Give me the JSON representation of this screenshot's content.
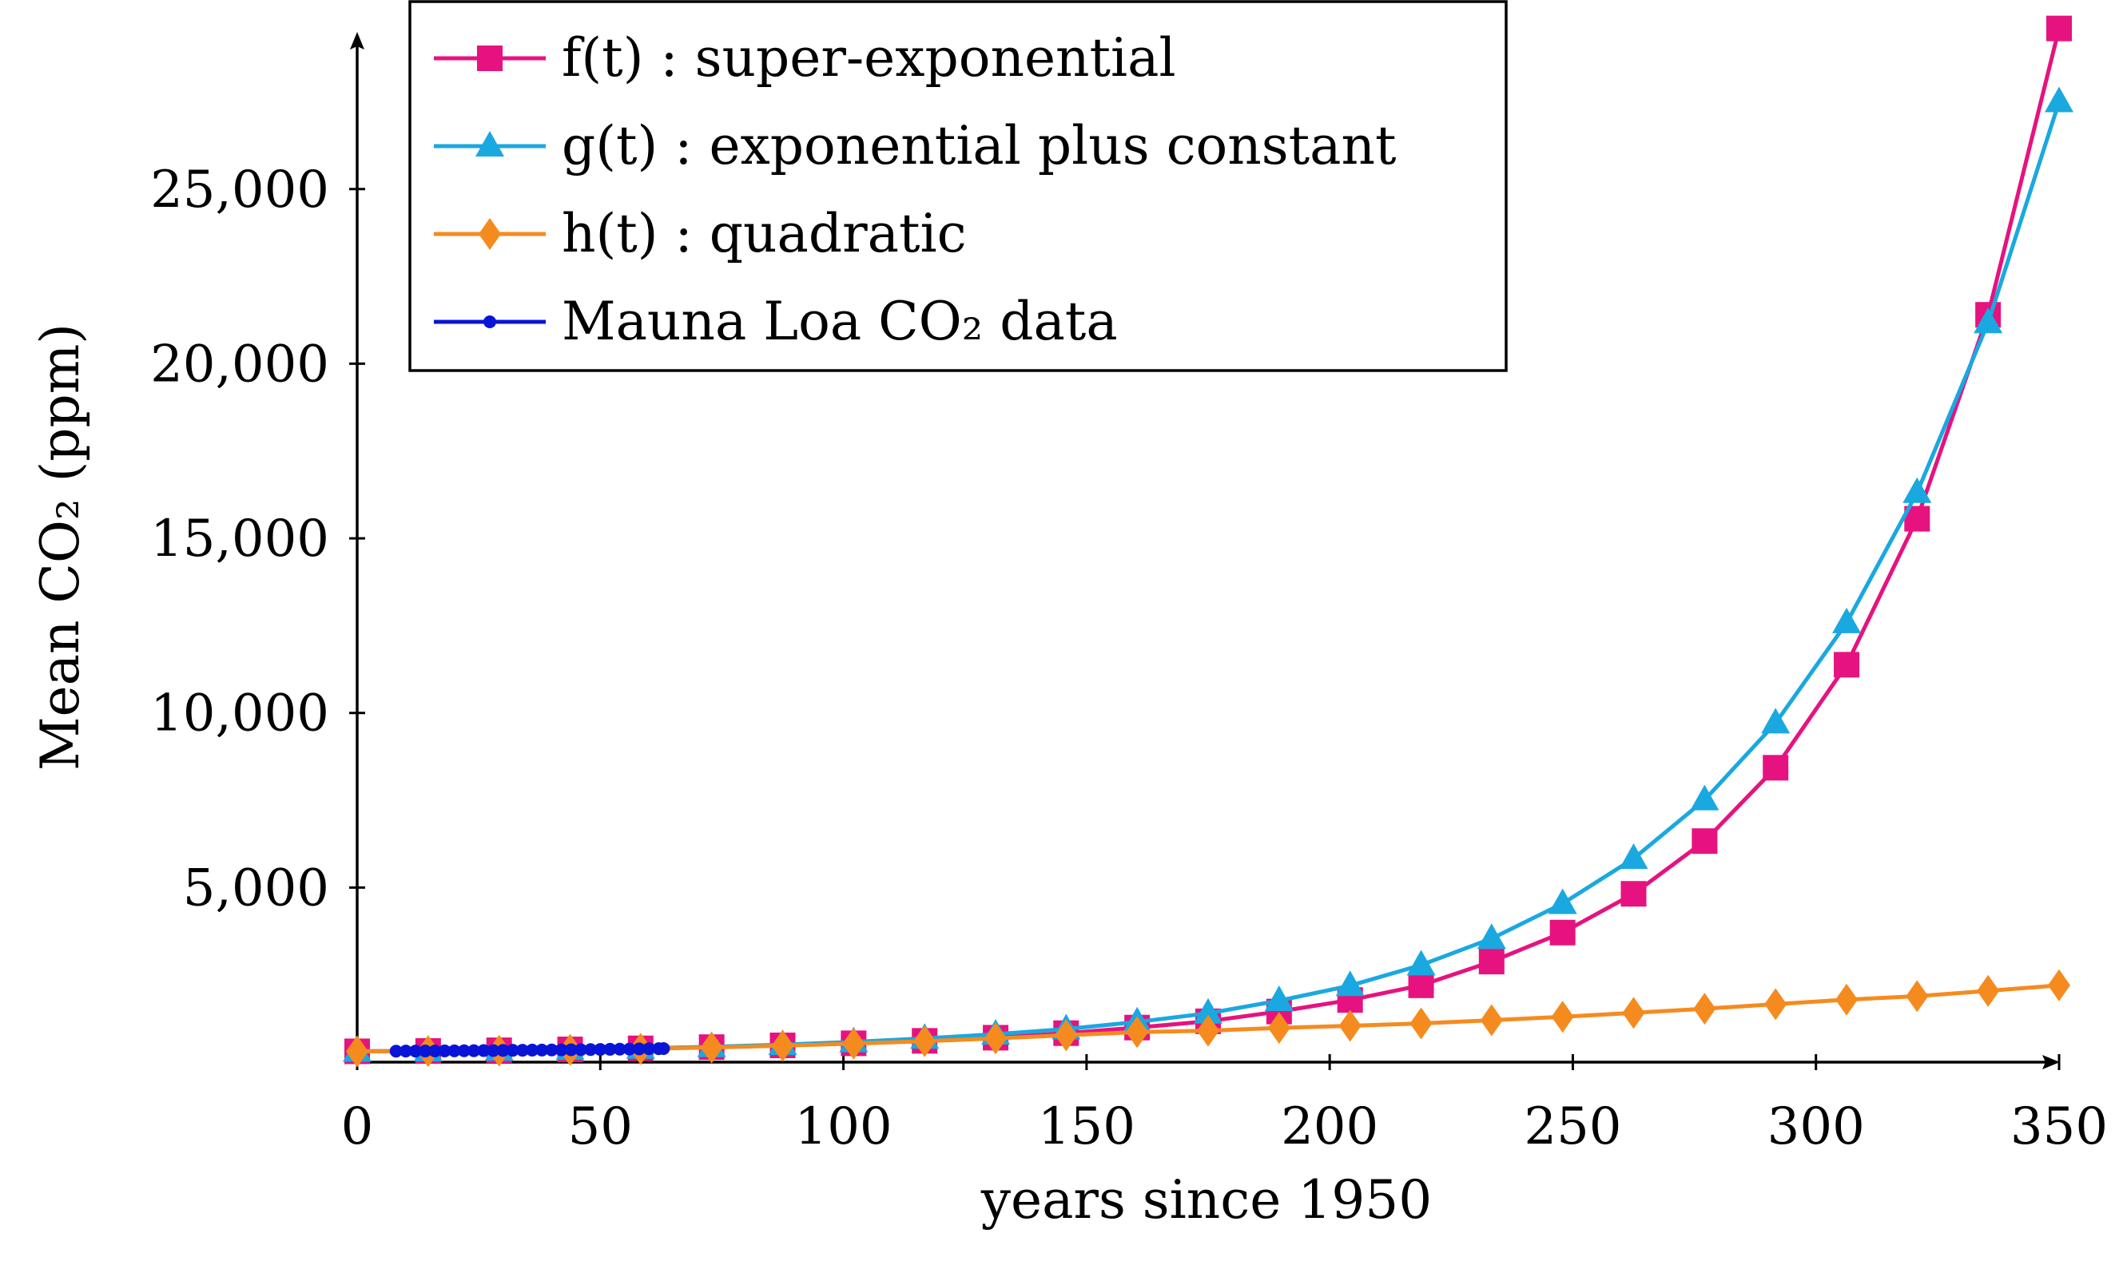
{
  "chart_data": {
    "type": "line",
    "xlabel": "years since 1950",
    "ylabel": "Mean CO₂ (ppm)",
    "xlim": [
      0,
      350
    ],
    "ylim": [
      0,
      29500
    ],
    "x_ticks": [
      0,
      50,
      100,
      150,
      200,
      250,
      300,
      350
    ],
    "y_ticks": [
      5000,
      10000,
      15000,
      20000,
      25000
    ],
    "x_tick_labels": [
      "0",
      "50",
      "100",
      "150",
      "200",
      "250",
      "300",
      "350"
    ],
    "y_tick_labels": [
      "5,000",
      "10,000",
      "15,000",
      "20,000",
      "25,000"
    ],
    "legend_position": "top-left",
    "grid": false,
    "series": [
      {
        "name": "f(t) : super-exponential",
        "color": "#e6127f",
        "marker": "square",
        "x": [
          0,
          14.6,
          29.2,
          43.8,
          58.3,
          72.9,
          87.5,
          102.1,
          116.7,
          131.3,
          145.8,
          160.4,
          175,
          189.6,
          204.2,
          218.8,
          233.3,
          247.9,
          262.5,
          277.1,
          291.7,
          306.3,
          320.8,
          335.4,
          350
        ],
        "y": [
          310,
          320,
          340,
          365,
          395,
          430,
          480,
          540,
          610,
          700,
          830,
          990,
          1170,
          1450,
          1780,
          2200,
          2880,
          3710,
          4820,
          6330,
          8430,
          11380,
          15560,
          21400,
          29600
        ]
      },
      {
        "name": "g(t) : exponential plus constant",
        "color": "#1aa8e0",
        "marker": "triangle",
        "x": [
          0,
          14.6,
          29.2,
          43.8,
          58.3,
          72.9,
          87.5,
          102.1,
          116.7,
          131.3,
          145.8,
          160.4,
          175,
          189.6,
          204.2,
          218.8,
          233.3,
          247.9,
          262.5,
          277.1,
          291.7,
          306.3,
          320.8,
          335.4,
          350
        ],
        "y": [
          310,
          320,
          338,
          362,
          395,
          440,
          500,
          580,
          680,
          800,
          950,
          1150,
          1400,
          1760,
          2190,
          2780,
          3540,
          4540,
          5830,
          7510,
          9710,
          12580,
          16310,
          21170,
          27500
        ]
      },
      {
        "name": "h(t) : quadratic",
        "color": "#f58b1f",
        "marker": "diamond",
        "x": [
          0,
          14.6,
          29.2,
          43.8,
          58.3,
          72.9,
          87.5,
          102.1,
          116.7,
          131.3,
          145.8,
          160.4,
          175,
          189.6,
          204.2,
          218.8,
          233.3,
          247.9,
          262.5,
          277.1,
          291.7,
          306.3,
          320.8,
          335.4,
          350
        ],
        "y": [
          310,
          316,
          330,
          352,
          380,
          420,
          470,
          530,
          600,
          680,
          770,
          860,
          900,
          980,
          1040,
          1110,
          1200,
          1300,
          1410,
          1530,
          1660,
          1790,
          1890,
          2040,
          2200
        ]
      },
      {
        "name": "Mauna Loa CO₂ data",
        "color": "#0a14d6",
        "marker": "dot",
        "x": [
          8,
          10,
          12,
          14,
          16,
          18,
          20,
          22,
          24,
          26,
          28,
          30,
          32,
          34,
          36,
          38,
          40,
          42,
          44,
          46,
          48,
          50,
          52,
          54,
          56,
          58,
          60,
          62,
          63
        ],
        "y": [
          315,
          317,
          318,
          319,
          321,
          322,
          324,
          326,
          328,
          331,
          333,
          336,
          339,
          341,
          345,
          347,
          350,
          353,
          355,
          358,
          360,
          364,
          368,
          371,
          375,
          379,
          383,
          387,
          390
        ]
      }
    ]
  }
}
